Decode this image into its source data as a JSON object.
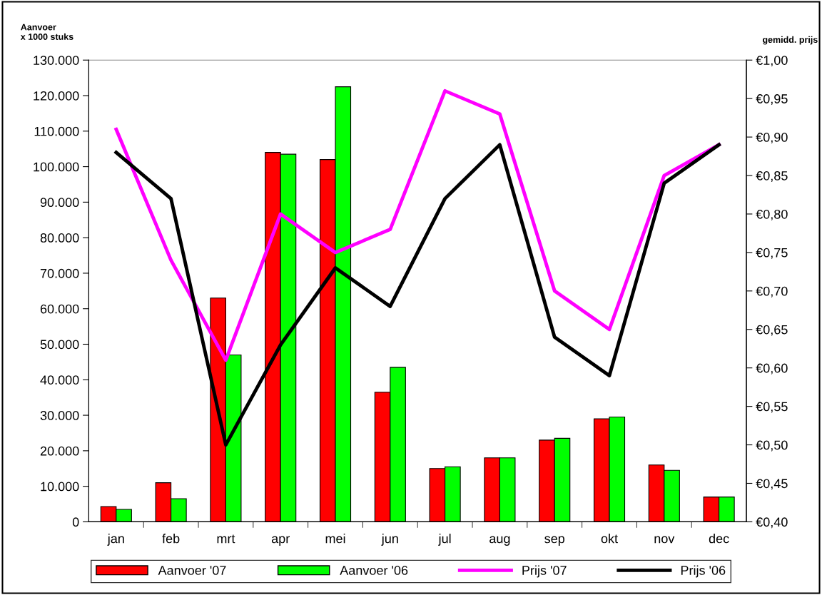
{
  "chart_data": {
    "type": "bar",
    "ylabel": "Aanvoer\nx 1000 stuks",
    "y2label": "gemidd. prijs",
    "categories": [
      "jan",
      "feb",
      "mrt",
      "apr",
      "mei",
      "jun",
      "jul",
      "aug",
      "sep",
      "okt",
      "nov",
      "dec"
    ],
    "series": [
      {
        "name": "Aanvoer '07",
        "color": "#ff0000",
        "values": [
          4300,
          11000,
          63000,
          104000,
          102000,
          36500,
          15000,
          18000,
          23000,
          29000,
          16000,
          7000
        ]
      },
      {
        "name": "Aanvoer '06",
        "color": "#00ff00",
        "values": [
          3500,
          6500,
          47000,
          103500,
          122500,
          43500,
          15500,
          18000,
          23500,
          29500,
          14500,
          7000
        ]
      },
      {
        "name": "Prijs '07",
        "type": "line",
        "axis": "y2",
        "color": "#ff00ff",
        "values": [
          0.91,
          0.74,
          0.61,
          0.8,
          0.75,
          0.78,
          0.96,
          0.93,
          0.7,
          0.65,
          0.85,
          0.89
        ]
      },
      {
        "name": "Prijs '06",
        "type": "line",
        "axis": "y2",
        "color": "#000000",
        "values": [
          0.88,
          0.82,
          0.5,
          0.63,
          0.73,
          0.68,
          0.82,
          0.89,
          0.64,
          0.59,
          0.84,
          0.89
        ]
      }
    ],
    "ylim": [
      0,
      130000
    ],
    "yticks": [
      0,
      {
        "value": 10000,
        "label": "10.000"
      },
      {
        "value": 20000,
        "label": "20.000"
      },
      {
        "value": 30000,
        "label": "30.000"
      },
      {
        "value": 40000,
        "label": "40.000"
      },
      {
        "value": 50000,
        "label": "50.000"
      },
      {
        "value": 60000,
        "label": "60.000"
      },
      {
        "value": 70000,
        "label": "70.000"
      },
      {
        "value": 80000,
        "label": "80.000"
      },
      {
        "value": 90000,
        "label": "90.000"
      },
      {
        "value": 100000,
        "label": "100.000"
      },
      {
        "value": 110000,
        "label": "110.000"
      },
      {
        "value": 120000,
        "label": "120.000"
      },
      {
        "value": 130000,
        "label": "130.000"
      }
    ],
    "y2lim": [
      0.4,
      1.0
    ],
    "y2ticks": [
      {
        "value": 0.4,
        "label": "€0,40"
      },
      {
        "value": 0.45,
        "label": "€0,45"
      },
      {
        "value": 0.5,
        "label": "€0,50"
      },
      {
        "value": 0.55,
        "label": "€0,55"
      },
      {
        "value": 0.6,
        "label": "€0,60"
      },
      {
        "value": 0.65,
        "label": "€0,65"
      },
      {
        "value": 0.7,
        "label": "€0,70"
      },
      {
        "value": 0.75,
        "label": "€0,75"
      },
      {
        "value": 0.8,
        "label": "€0,80"
      },
      {
        "value": 0.85,
        "label": "€0,85"
      },
      {
        "value": 0.9,
        "label": "€0,90"
      },
      {
        "value": 0.95,
        "label": "€0,95"
      },
      {
        "value": 1.0,
        "label": "€1,00"
      }
    ],
    "grid": false,
    "legend": "bottom",
    "marker": "none",
    "line_style": "solid"
  }
}
